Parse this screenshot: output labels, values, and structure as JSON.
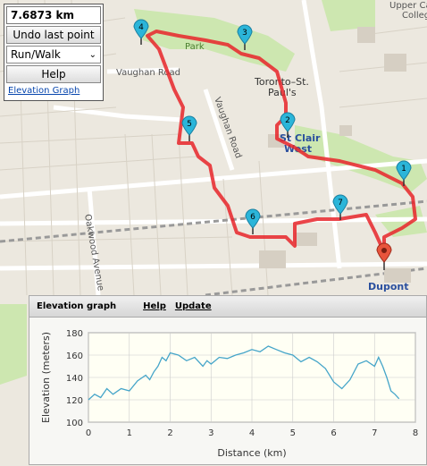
{
  "map": {
    "labels": [
      {
        "text": "Upper Canada"
      },
      {
        "text": "College"
      },
      {
        "text": "Toronto–St."
      },
      {
        "text": "Paul's"
      },
      {
        "text": "Vaughan Road"
      },
      {
        "text": "Vaughan Road"
      },
      {
        "text": "Oakwood Avenue"
      },
      {
        "text": "St Clair"
      },
      {
        "text": "West"
      },
      {
        "text": "Dupont"
      },
      {
        "text": "Park"
      }
    ],
    "markers": [
      "1",
      "2",
      "3",
      "4",
      "5",
      "6",
      "7"
    ],
    "colors": {
      "route": "#e8242a",
      "marker": "#2bb5d9",
      "end_marker": "#e8543c"
    }
  },
  "controls": {
    "distance": "7.6873 km",
    "undo_label": "Undo last point",
    "mode_value": "Run/Walk",
    "help_label": "Help",
    "elevation_link": "Elevation Graph"
  },
  "elevation": {
    "title": "Elevation graph",
    "help": "Help",
    "update": "Update"
  },
  "chart_data": {
    "type": "line",
    "title": "",
    "xlabel": "Distance (km)",
    "ylabel": "Elevation (meters)",
    "xlim": [
      0,
      8
    ],
    "ylim": [
      100,
      180
    ],
    "xticks": [
      "0",
      "1",
      "2",
      "3",
      "4",
      "5",
      "6",
      "7",
      "8"
    ],
    "yticks": [
      "100",
      "120",
      "140",
      "160",
      "180"
    ],
    "color": "#45a5c9",
    "x": [
      0,
      0.15,
      0.3,
      0.45,
      0.6,
      0.8,
      1.0,
      1.2,
      1.4,
      1.5,
      1.6,
      1.7,
      1.8,
      1.9,
      2.0,
      2.2,
      2.4,
      2.6,
      2.8,
      2.9,
      3.0,
      3.2,
      3.4,
      3.6,
      3.8,
      4.0,
      4.2,
      4.4,
      4.6,
      4.8,
      5.0,
      5.2,
      5.4,
      5.6,
      5.8,
      6.0,
      6.2,
      6.4,
      6.6,
      6.8,
      7.0,
      7.1,
      7.2,
      7.3,
      7.4,
      7.5,
      7.6
    ],
    "y": [
      120,
      125,
      122,
      130,
      125,
      130,
      128,
      137,
      142,
      138,
      145,
      150,
      158,
      155,
      162,
      160,
      155,
      158,
      150,
      155,
      152,
      158,
      157,
      160,
      162,
      165,
      163,
      168,
      165,
      162,
      160,
      154,
      158,
      154,
      148,
      136,
      130,
      138,
      152,
      155,
      150,
      158,
      150,
      140,
      128,
      125,
      121
    ]
  }
}
